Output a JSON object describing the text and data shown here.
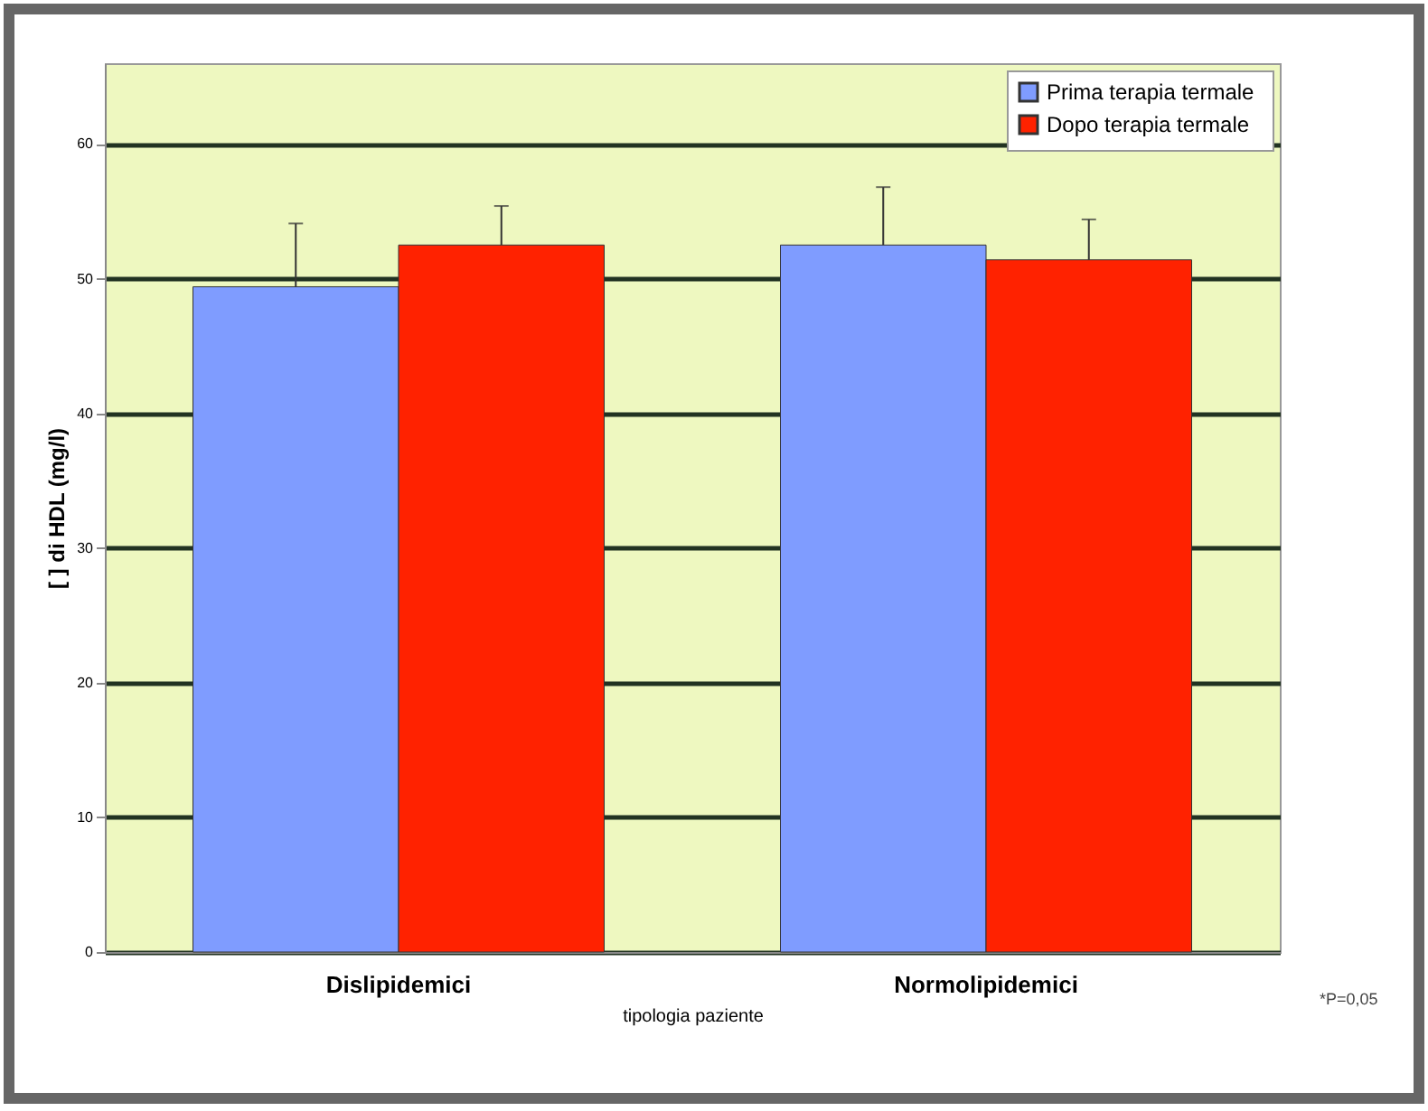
{
  "chart_data": {
    "type": "bar",
    "xlabel": "tipologia paziente",
    "ylabel": "[ ] di HDL (mg/l)",
    "categories": [
      "Dislipidemici",
      "Normolipidemici"
    ],
    "series": [
      {
        "name": "Prima  terapia termale",
        "color": "#7f9cff",
        "values": [
          49.4,
          52.5
        ],
        "errors": [
          [
            49.4,
            54.1
          ],
          [
            52.5,
            56.8
          ]
        ]
      },
      {
        "name": "Dopo terapia termale",
        "color": "#ff2200",
        "values": [
          52.5,
          51.4
        ],
        "errors": [
          [
            52.5,
            55.4
          ],
          [
            51.4,
            54.4
          ]
        ]
      }
    ],
    "ylim": [
      0,
      66
    ],
    "yticks": [
      0,
      10,
      20,
      30,
      40,
      50,
      60
    ],
    "grid": "y",
    "legend": "top right",
    "annotations": [
      "*P=0,05"
    ]
  }
}
